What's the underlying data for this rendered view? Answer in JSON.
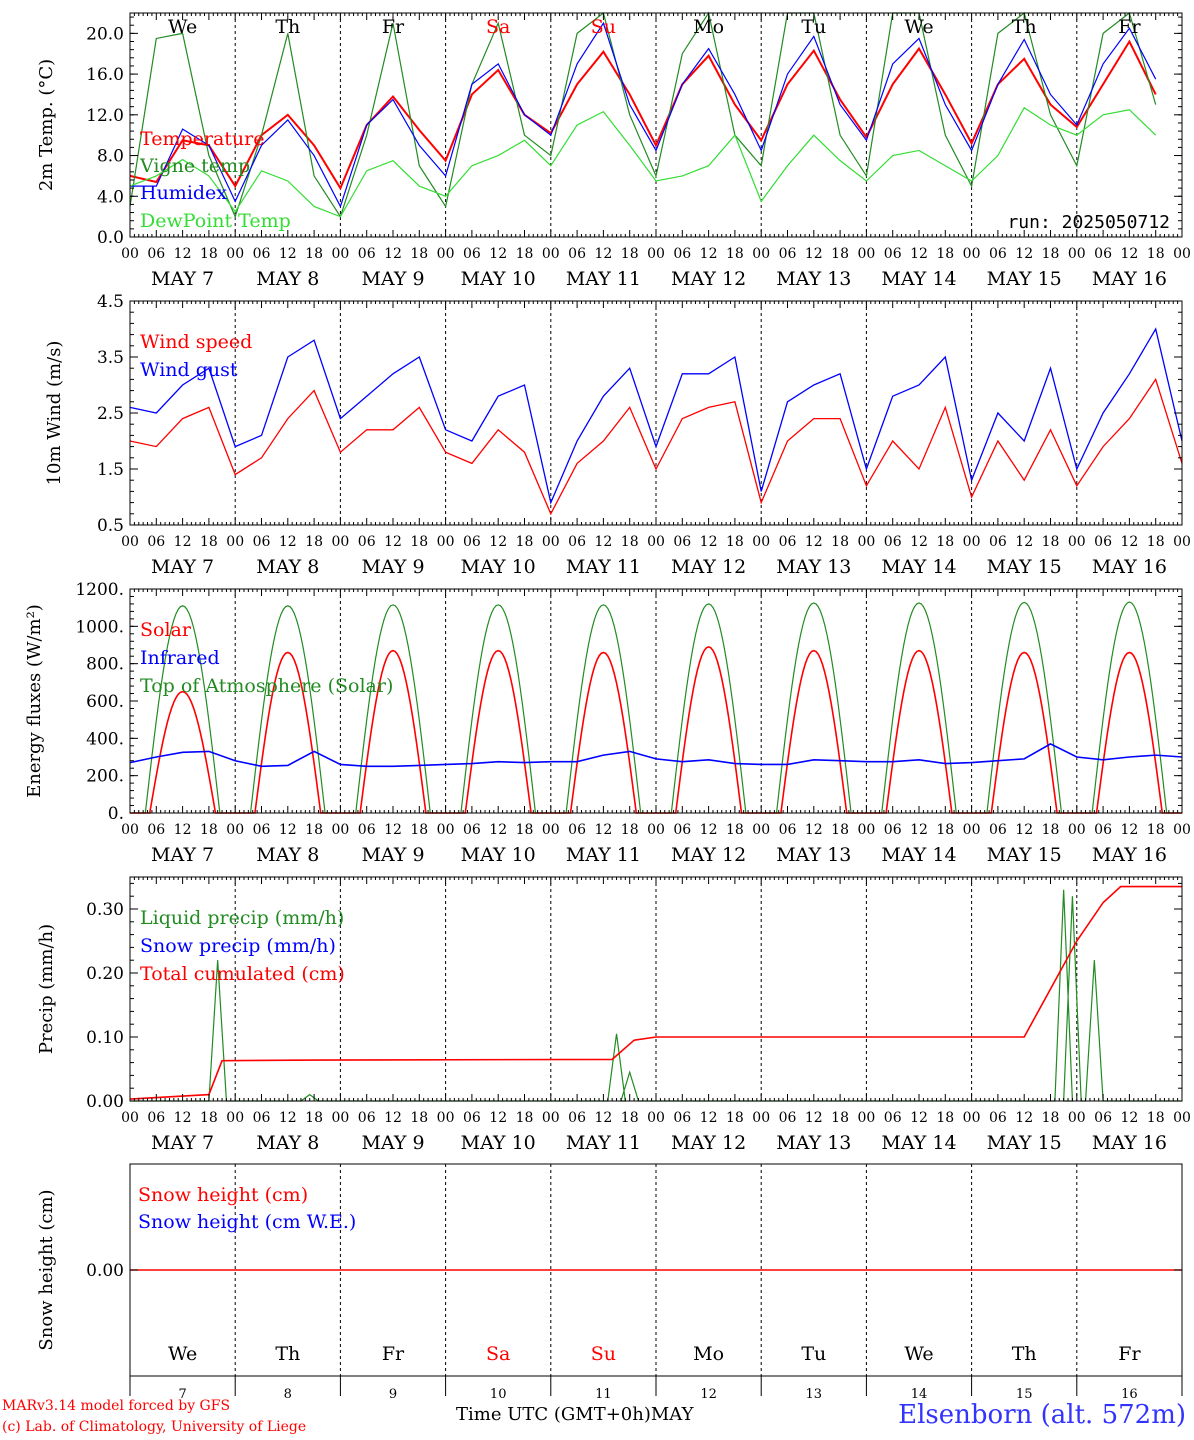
{
  "run_label": "run: 2025050712",
  "day_abbrevs": [
    "We",
    "Th",
    "Fr",
    "Sa",
    "Su",
    "Mo",
    "Tu",
    "We",
    "Th",
    "Fr"
  ],
  "day_colors": [
    "#000000",
    "#000000",
    "#000000",
    "#ff0000",
    "#ff0000",
    "#000000",
    "#000000",
    "#000000",
    "#000000",
    "#000000"
  ],
  "date_labels": [
    "MAY  7",
    "MAY  8",
    "MAY  9",
    "MAY 10",
    "MAY 11",
    "MAY 12",
    "MAY 13",
    "MAY 14",
    "MAY 15",
    "MAY 16"
  ],
  "hour_labels": [
    "00",
    "06",
    "12",
    "18"
  ],
  "day_numbers": [
    "7",
    "8",
    "9",
    "10",
    "11",
    "12",
    "13",
    "14",
    "15",
    "16"
  ],
  "footer": {
    "credit_line1": "MARv3.14 model forced by GFS",
    "credit_line2": "(c) Lab. of Climatology, University of Liege",
    "axis_title": "Time UTC (GMT+0h)",
    "month": "MAY",
    "station": "Elsenborn (alt. 572m)"
  },
  "colors": {
    "red": "#ff0000",
    "green": "#228b22",
    "blue": "#0000ff",
    "light_green": "#33dd33",
    "station_blue": "#3333ff"
  },
  "chart_data": [
    {
      "type": "line",
      "ylabel": "2m Temp. (°C)",
      "ylim": [
        0,
        22
      ],
      "yticks": [
        0,
        4,
        8,
        12,
        16,
        20
      ],
      "ytick_labels": [
        "0.0",
        "4.0",
        "8.0",
        "12.0",
        "16.0",
        "20.0"
      ],
      "x": "hours since 00 UTC MAY 7, 0 to 240 every 6 h",
      "series": [
        {
          "name": "Temperature",
          "color": "#ff0000",
          "values": [
            6,
            5.4,
            9.5,
            9,
            5,
            10,
            12,
            9,
            4.8,
            11,
            13.8,
            10.5,
            7.5,
            14,
            16.4,
            12,
            10.2,
            15,
            18.2,
            14,
            9,
            15,
            17.8,
            13,
            9.5,
            15,
            18.3,
            13.5,
            9.8,
            15,
            18.5,
            14,
            9.2,
            15,
            17.5,
            13,
            10.8,
            15,
            19.2,
            14
          ]
        },
        {
          "name": "Vigne temp",
          "color": "#228b22",
          "values": [
            3,
            19.5,
            20,
            8,
            2,
            10,
            20,
            6,
            2,
            10,
            21,
            7,
            3,
            15,
            21,
            10,
            8,
            20,
            22,
            12,
            6,
            18,
            22,
            10,
            7,
            22,
            22,
            10,
            6,
            22,
            22,
            10,
            5,
            20,
            22,
            12,
            7,
            20,
            22,
            13
          ]
        },
        {
          "name": "Humidex",
          "color": "#0000ff",
          "values": [
            5,
            5,
            10.6,
            9,
            3.5,
            9,
            11.5,
            8,
            3,
            11,
            13.5,
            9,
            6,
            15,
            17,
            12,
            10,
            17,
            21,
            13,
            8.5,
            15,
            18.5,
            14,
            8.5,
            16,
            19.7,
            13,
            9.5,
            17,
            19.5,
            13,
            8.5,
            15,
            19.4,
            14,
            11,
            17,
            20.5,
            15.5
          ]
        },
        {
          "name": "DewPoint Temp",
          "color": "#33dd33",
          "values": [
            5,
            6,
            7.6,
            6,
            2.5,
            6.5,
            5.5,
            3,
            2,
            6.5,
            7.5,
            5,
            4,
            7,
            8,
            9.5,
            7,
            11,
            12.3,
            9,
            5.5,
            6,
            7,
            10,
            3.5,
            7,
            10,
            7.5,
            5.5,
            8,
            8.5,
            7,
            5.5,
            8,
            12.7,
            11,
            10,
            12,
            12.5,
            10
          ]
        }
      ]
    },
    {
      "type": "line",
      "ylabel": "10m Wind (m/s)",
      "ylim": [
        0.5,
        4.5
      ],
      "yticks": [
        0.5,
        1.5,
        2.5,
        3.5,
        4.5
      ],
      "ytick_labels": [
        "0.5",
        "1.5",
        "2.5",
        "3.5",
        "4.5"
      ],
      "x": "hours since 00 UTC MAY 7, 0 to 240 every 6 h",
      "series": [
        {
          "name": "Wind speed",
          "color": "#ff0000",
          "values": [
            2,
            1.9,
            2.4,
            2.6,
            1.4,
            1.7,
            2.4,
            2.9,
            1.8,
            2.2,
            2.2,
            2.6,
            1.8,
            1.6,
            2.2,
            1.8,
            0.7,
            1.6,
            2,
            2.6,
            1.5,
            2.4,
            2.6,
            2.7,
            0.9,
            2,
            2.4,
            2.4,
            1.2,
            2,
            1.5,
            2.6,
            1,
            2,
            1.3,
            2.2,
            1.2,
            1.9,
            2.4,
            3.1,
            1.6
          ]
        },
        {
          "name": "Wind gust",
          "color": "#0000ff",
          "values": [
            2.6,
            2.5,
            3,
            3.3,
            1.9,
            2.1,
            3.5,
            3.8,
            2.4,
            2.8,
            3.2,
            3.5,
            2.2,
            2.0,
            2.8,
            3.0,
            0.9,
            2.0,
            2.8,
            3.3,
            1.9,
            3.2,
            3.2,
            3.5,
            1.1,
            2.7,
            3.0,
            3.2,
            1.5,
            2.8,
            3.0,
            3.5,
            1.3,
            2.5,
            2.0,
            3.3,
            1.5,
            2.5,
            3.2,
            4.0,
            2.0
          ]
        }
      ]
    },
    {
      "type": "line",
      "ylabel": "Energy fluxes (W/m²)",
      "ylim": [
        0,
        1200
      ],
      "yticks": [
        0,
        200,
        400,
        600,
        800,
        1000,
        1200
      ],
      "ytick_labels": [
        "0.",
        "200.",
        "400.",
        "600.",
        "800.",
        "1000.",
        "1200."
      ],
      "x": "hours since 00 UTC MAY 7",
      "series": [
        {
          "name": "Solar",
          "color": "#ff0000",
          "daily_peaks": [
            650,
            860,
            870,
            870,
            860,
            890,
            870,
            870,
            860,
            860
          ]
        },
        {
          "name": "Infrared",
          "color": "#0000ff",
          "values": [
            270,
            300,
            325,
            330,
            280,
            250,
            255,
            330,
            260,
            250,
            250,
            255,
            260,
            265,
            275,
            270,
            275,
            275,
            310,
            330,
            290,
            275,
            285,
            265,
            260,
            260,
            285,
            280,
            275,
            275,
            285,
            265,
            270,
            280,
            290,
            370,
            300,
            285,
            300,
            310,
            300
          ]
        },
        {
          "name": "Top of Atmosphere (Solar)",
          "color": "#228b22",
          "daily_peaks": [
            1110,
            1110,
            1115,
            1115,
            1115,
            1120,
            1125,
            1125,
            1128,
            1130
          ]
        }
      ]
    },
    {
      "type": "line",
      "ylabel": "Precip (mm/h)",
      "ylim": [
        0,
        0.35
      ],
      "yticks": [
        0,
        0.1,
        0.2,
        0.3
      ],
      "ytick_labels": [
        "0.00",
        "0.10",
        "0.20",
        "0.30"
      ],
      "series": [
        {
          "name": "Liquid precip (mm/h)",
          "color": "#228b22",
          "events": [
            {
              "hour": 20,
              "value": 0.22
            },
            {
              "hour": 41,
              "value": 0.01
            },
            {
              "hour": 111,
              "value": 0.105
            },
            {
              "hour": 114,
              "value": 0.045
            },
            {
              "hour": 213,
              "value": 0.33
            },
            {
              "hour": 215,
              "value": 0.32
            },
            {
              "hour": 220,
              "value": 0.22
            }
          ]
        },
        {
          "name": "Snow precip (mm/h)",
          "color": "#0000ff",
          "values": []
        },
        {
          "name": "Total cumulated (cm)",
          "color": "#ff0000",
          "steps": [
            [
              0,
              0.003
            ],
            [
              18,
              0.01
            ],
            [
              21,
              0.063
            ],
            [
              42,
              0.064
            ],
            [
              110,
              0.065
            ],
            [
              115,
              0.095
            ],
            [
              120,
              0.1
            ],
            [
              204,
              0.1
            ],
            [
              212,
              0.2
            ],
            [
              216,
              0.25
            ],
            [
              222,
              0.31
            ],
            [
              226,
              0.335
            ],
            [
              240,
              0.335
            ]
          ]
        }
      ]
    },
    {
      "type": "line",
      "ylabel": "Snow height (cm)",
      "ylim": [
        -1,
        1
      ],
      "yticks": [
        0
      ],
      "ytick_labels": [
        "0.00"
      ],
      "series": [
        {
          "name": "Snow height (cm)",
          "color": "#ff0000",
          "values": [
            0,
            0
          ]
        },
        {
          "name": "Snow height (cm W.E.)",
          "color": "#0000ff",
          "values": [
            0,
            0
          ]
        }
      ]
    }
  ]
}
